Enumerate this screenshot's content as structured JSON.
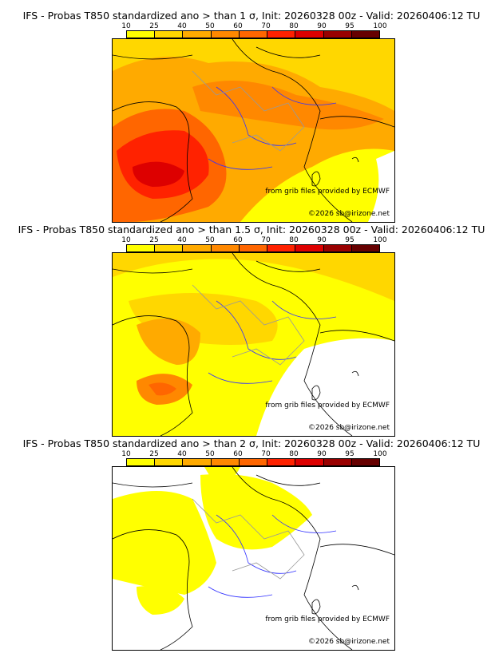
{
  "colorbar": {
    "ticks": [
      "10",
      "25",
      "40",
      "50",
      "60",
      "70",
      "80",
      "90",
      "95",
      "100"
    ],
    "colors": [
      "#ffff00",
      "#ffd700",
      "#ffaa00",
      "#ff8800",
      "#ff6600",
      "#ff2200",
      "#dd0000",
      "#990000",
      "#660000"
    ]
  },
  "panels": [
    {
      "title": "IFS - Probas T850  standardized ano > than 1 σ, Init: 20260328 00z - Valid: 20260406:12 TU"
    },
    {
      "title": "IFS - Probas T850  standardized ano > than 1.5 σ, Init: 20260328 00z - Valid: 20260406:12 TU"
    },
    {
      "title": "IFS - Probas T850  standardized ano > than 2 σ, Init: 20260328 00z - Valid: 20260406:12 TU"
    }
  ],
  "credits": {
    "source": "from grib files provided by ECMWF",
    "copyright": "©2026 sb@irizone.net"
  }
}
